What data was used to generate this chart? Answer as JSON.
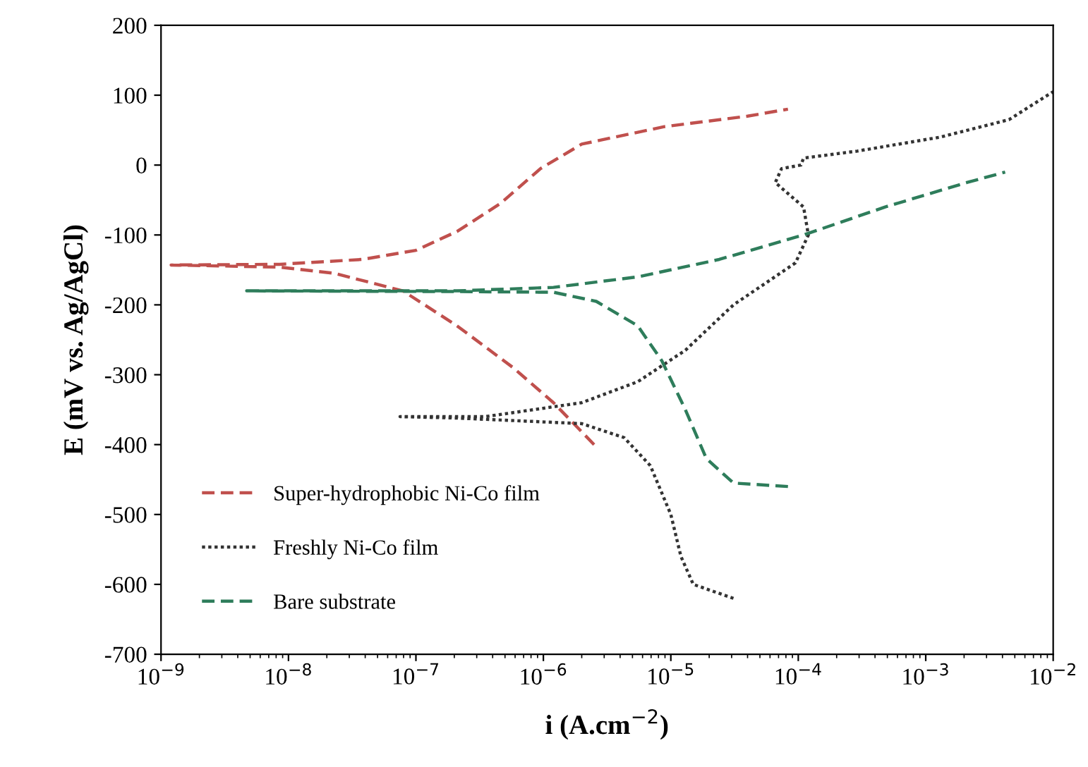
{
  "chart_data": {
    "type": "line",
    "xlabel": "i (A.cm$^{−2}$)",
    "ylabel": "E (mV vs. Ag/AgCl)",
    "log": "x",
    "grid": false,
    "legend": "bottom left",
    "marker": "none",
    "xlim": [
      1e-09,
      0.01
    ],
    "ylim": [
      -700,
      200
    ],
    "xticks": [
      {
        "value": 1e-09,
        "label": "10$^{−9}$"
      },
      {
        "value": 1e-08,
        "label": "10$^{−8}$"
      },
      {
        "value": 1e-07,
        "label": "10$^{−7}$"
      },
      {
        "value": 1e-06,
        "label": "10$^{−6}$"
      },
      {
        "value": 1e-05,
        "label": "10$^{−5}$"
      },
      {
        "value": 0.0001,
        "label": "10$^{−4}$"
      },
      {
        "value": 0.001,
        "label": "10$^{−3}$"
      },
      {
        "value": 0.01,
        "label": "10$^{−2}$"
      }
    ],
    "yticks": [
      -700,
      -600,
      -500,
      -400,
      -300,
      -200,
      -100,
      0,
      100,
      200
    ],
    "series": [
      {
        "name": "Super-hydrophobic Ni-Co film",
        "color": "#c0504d",
        "line_style": "dashed",
        "x": [
          2.5e-06,
          1.2e-06,
          5.8e-07,
          2.1e-07,
          7.9e-08,
          2.3e-08,
          8.5e-09,
          1.2e-09,
          8.5e-09,
          3.8e-08,
          1e-07,
          2.1e-07,
          4.6e-07,
          9.5e-07,
          2e-06,
          8.9e-06,
          4e-05,
          8.3e-05
        ],
        "values": [
          -400,
          -340,
          -290,
          -230,
          -180,
          -155,
          -146,
          -143,
          -142,
          -135,
          -122,
          -95,
          -55,
          -5,
          30,
          55,
          70,
          80
        ]
      },
      {
        "name": "Freshly Ni-Co film",
        "color": "#333333",
        "line_style": "dotted",
        "x": [
          3.1e-05,
          1.5e-05,
          1.2e-05,
          1e-05,
          6.9e-06,
          4.3e-06,
          2e-06,
          2.1e-07,
          7.5e-08,
          2.1e-07,
          3.5e-07,
          2e-06,
          5.5e-06,
          1.3e-05,
          3.1e-05,
          9.5e-05,
          0.00012,
          0.00011,
          6.6e-05,
          7.4e-05,
          0.000105,
          0.00011,
          0.00029,
          0.0013,
          0.0045,
          0.01
        ],
        "values": [
          -620,
          -600,
          -560,
          -500,
          -430,
          -390,
          -370,
          -362,
          -360,
          -360,
          -360,
          -340,
          -310,
          -265,
          -200,
          -140,
          -100,
          -60,
          -25,
          -5,
          0,
          10,
          20,
          40,
          65,
          105
        ]
      },
      {
        "name": "Bare substrate",
        "color": "#2e7d5b",
        "line_style": "dashed",
        "x": [
          8.3e-05,
          3.1e-05,
          1.9e-05,
          1.3e-05,
          8.5e-06,
          5.5e-06,
          2.6e-06,
          1.2e-06,
          2.1e-07,
          4.7e-09,
          2.1e-07,
          1.2e-06,
          5.5e-06,
          2.4e-05,
          0.00011,
          0.00048,
          0.0021,
          0.0042
        ],
        "values": [
          -460,
          -455,
          -420,
          -350,
          -280,
          -230,
          -195,
          -182,
          -181,
          -180,
          -180,
          -175,
          -160,
          -135,
          -100,
          -60,
          -25,
          -10
        ]
      }
    ]
  }
}
